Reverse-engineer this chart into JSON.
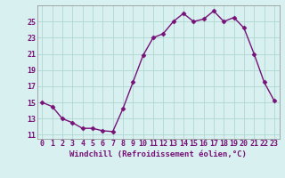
{
  "x": [
    0,
    1,
    2,
    3,
    4,
    5,
    6,
    7,
    8,
    9,
    10,
    11,
    12,
    13,
    14,
    15,
    16,
    17,
    18,
    19,
    20,
    21,
    22,
    23
  ],
  "y": [
    15,
    14.5,
    13,
    12.5,
    11.8,
    11.8,
    11.5,
    11.4,
    14.2,
    17.5,
    20.8,
    23,
    23.5,
    25,
    26,
    25,
    25.3,
    26.3,
    25,
    25.5,
    24.2,
    21,
    17.5,
    15.2
  ],
  "line_color": "#771177",
  "marker_color": "#771177",
  "bg_color": "#d8f0f0",
  "grid_color": "#b0d8d0",
  "xlabel": "Windchill (Refroidissement éolien,°C)",
  "xlim": [
    -0.5,
    23.5
  ],
  "ylim": [
    10.5,
    27.0
  ],
  "yticks": [
    11,
    13,
    15,
    17,
    19,
    21,
    23,
    25
  ],
  "xticks": [
    0,
    1,
    2,
    3,
    4,
    5,
    6,
    7,
    8,
    9,
    10,
    11,
    12,
    13,
    14,
    15,
    16,
    17,
    18,
    19,
    20,
    21,
    22,
    23
  ],
  "xtick_labels": [
    "0",
    "1",
    "2",
    "3",
    "4",
    "5",
    "6",
    "7",
    "8",
    "9",
    "10",
    "11",
    "12",
    "13",
    "14",
    "15",
    "16",
    "17",
    "18",
    "19",
    "20",
    "21",
    "22",
    "23"
  ],
  "xlabel_fontsize": 6.5,
  "tick_fontsize": 6.0,
  "line_width": 1.0,
  "marker_size": 2.5
}
